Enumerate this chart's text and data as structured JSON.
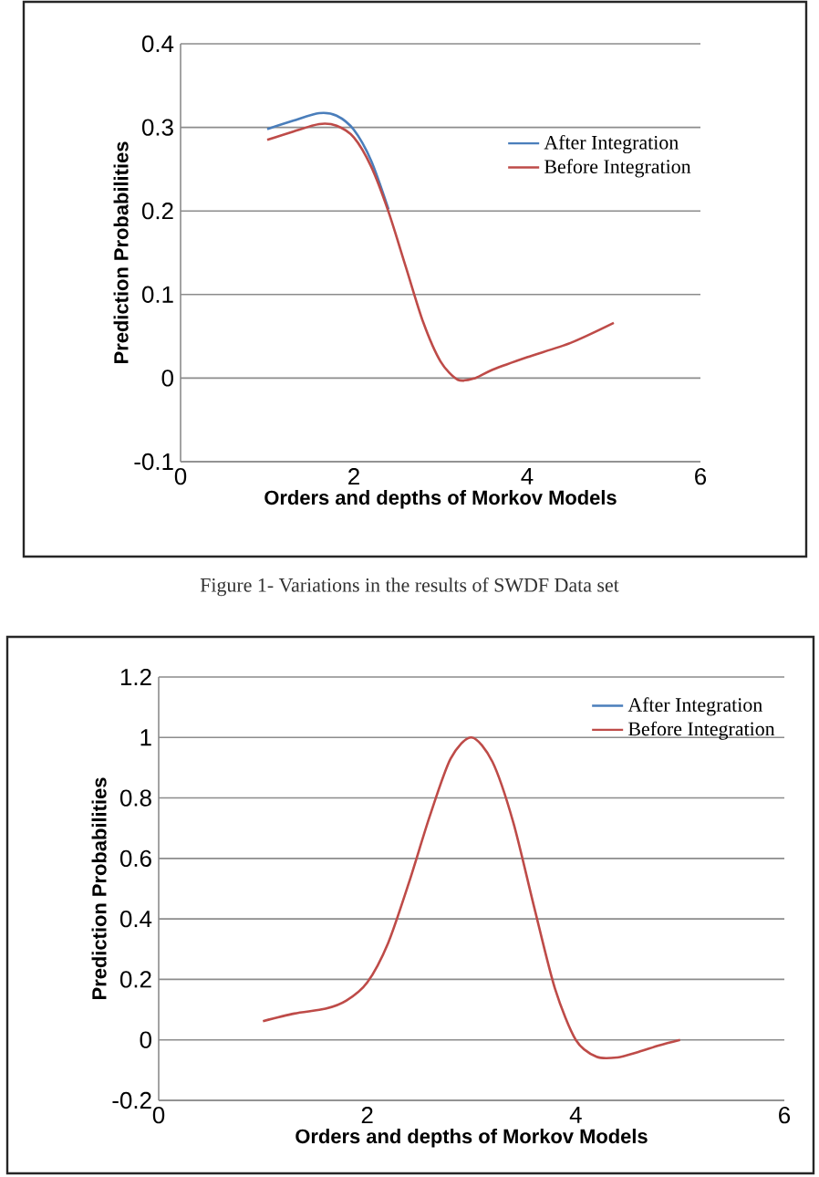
{
  "chart_data": [
    {
      "type": "line",
      "xlabel": "Orders and depths of Morkov Models",
      "ylabel": "Prediction Probabilities",
      "xlim": [
        0,
        6
      ],
      "xticks": [
        0,
        2,
        4,
        6
      ],
      "ylim": [
        -0.1,
        0.4
      ],
      "yticks": [
        -0.1,
        0,
        0.1,
        0.2,
        0.3,
        0.4
      ],
      "grid": "y",
      "legend": "right",
      "line_style": "solid",
      "marker": "none",
      "annotations": [
        "Figure 1- Variations in the results of SWDF Data set"
      ],
      "series": [
        {
          "name": "After Integration",
          "color": "#4a7ebb",
          "x": [
            1,
            1.3,
            1.6,
            1.8,
            2.0,
            2.2,
            2.4
          ],
          "values": [
            0.298,
            0.308,
            0.317,
            0.314,
            0.297,
            0.26,
            0.202
          ]
        },
        {
          "name": "Before Integration",
          "color": "#be4b48",
          "x": [
            1,
            1.3,
            1.6,
            1.8,
            2.0,
            2.2,
            2.4,
            2.6,
            2.8,
            3.0,
            3.2,
            3.4,
            3.6,
            4,
            4.5,
            5
          ],
          "values": [
            0.285,
            0.295,
            0.304,
            0.302,
            0.288,
            0.253,
            0.199,
            0.133,
            0.067,
            0.02,
            -0.002,
            0,
            0.01,
            0.025,
            0.042,
            0.066
          ]
        }
      ]
    },
    {
      "type": "line",
      "xlabel": "Orders and depths of Morkov Models",
      "ylabel": "Prediction Probabilities",
      "xlim": [
        0,
        6
      ],
      "xticks": [
        0,
        2,
        4,
        6
      ],
      "ylim": [
        -0.2,
        1.2
      ],
      "yticks": [
        -0.2,
        0,
        0.2,
        0.4,
        0.6,
        0.8,
        1,
        1.2
      ],
      "grid": "y",
      "legend": "top right",
      "line_style": "solid",
      "marker": "none",
      "series": [
        {
          "name": "After Integration",
          "color": "#4a7ebb"
        },
        {
          "name": "Before Integration",
          "color": "#be4b48",
          "x": [
            1,
            1.3,
            1.6,
            1.8,
            2.0,
            2.2,
            2.4,
            2.6,
            2.8,
            3.0,
            3.2,
            3.4,
            3.6,
            3.8,
            4.0,
            4.2,
            4.4,
            4.6,
            4.8,
            5.0
          ],
          "values": [
            0.062,
            0.087,
            0.103,
            0.13,
            0.19,
            0.32,
            0.52,
            0.74,
            0.93,
            1.0,
            0.92,
            0.72,
            0.44,
            0.17,
            0.0,
            -0.056,
            -0.058,
            -0.04,
            -0.018,
            0
          ]
        }
      ]
    }
  ]
}
